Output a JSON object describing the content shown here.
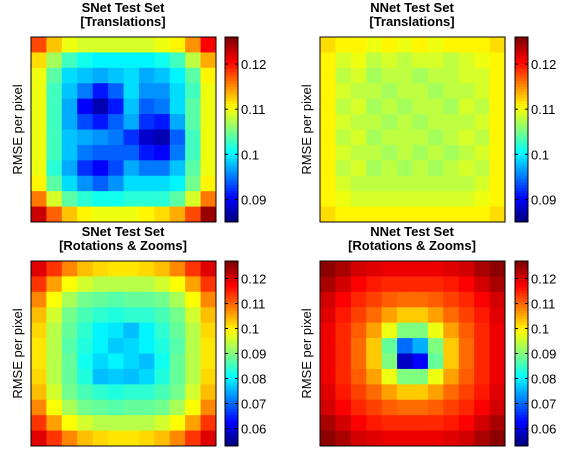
{
  "chart_data": [
    {
      "type": "heatmap",
      "title": [
        "SNet Test Set",
        "[Translations]"
      ],
      "xlabel": "",
      "ylabel": "RMSE per pixel",
      "colorbar": {
        "range": [
          0.085,
          0.126
        ],
        "ticks": [
          0.09,
          0.1,
          0.11,
          0.12
        ],
        "tick_labels": [
          "0.09",
          "0.1",
          "0.11",
          "0.12"
        ]
      },
      "grid": "12x12",
      "values": [
        [
          0.118,
          0.113,
          0.11,
          0.109,
          0.109,
          0.109,
          0.109,
          0.109,
          0.11,
          0.111,
          0.115,
          0.121
        ],
        [
          0.112,
          0.107,
          0.103,
          0.101,
          0.1,
          0.1,
          0.1,
          0.1,
          0.101,
          0.103,
          0.108,
          0.114
        ],
        [
          0.11,
          0.104,
          0.099,
          0.098,
          0.097,
          0.098,
          0.099,
          0.097,
          0.098,
          0.1,
          0.104,
          0.111
        ],
        [
          0.11,
          0.103,
          0.098,
          0.095,
          0.091,
          0.094,
          0.099,
          0.096,
          0.096,
          0.099,
          0.103,
          0.11
        ],
        [
          0.11,
          0.103,
          0.097,
          0.09,
          0.087,
          0.091,
          0.098,
          0.094,
          0.095,
          0.099,
          0.104,
          0.11
        ],
        [
          0.11,
          0.103,
          0.097,
          0.093,
          0.091,
          0.094,
          0.097,
          0.092,
          0.091,
          0.097,
          0.104,
          0.11
        ],
        [
          0.11,
          0.103,
          0.098,
          0.097,
          0.096,
          0.095,
          0.092,
          0.088,
          0.087,
          0.094,
          0.103,
          0.11
        ],
        [
          0.11,
          0.103,
          0.098,
          0.095,
          0.094,
          0.094,
          0.094,
          0.091,
          0.09,
          0.095,
          0.103,
          0.11
        ],
        [
          0.11,
          0.102,
          0.097,
          0.092,
          0.09,
          0.093,
          0.097,
          0.095,
          0.095,
          0.098,
          0.104,
          0.11
        ],
        [
          0.111,
          0.104,
          0.099,
          0.096,
          0.094,
          0.096,
          0.099,
          0.099,
          0.099,
          0.1,
          0.105,
          0.111
        ],
        [
          0.116,
          0.109,
          0.104,
          0.102,
          0.101,
          0.101,
          0.102,
          0.102,
          0.102,
          0.104,
          0.109,
          0.116
        ],
        [
          0.123,
          0.117,
          0.113,
          0.111,
          0.11,
          0.11,
          0.11,
          0.111,
          0.112,
          0.114,
          0.118,
          0.125
        ]
      ]
    },
    {
      "type": "heatmap",
      "title": [
        "NNet Test Set",
        "[Translations]"
      ],
      "xlabel": "",
      "ylabel": "RMSE per pixel",
      "colorbar": {
        "range": [
          0.085,
          0.126
        ],
        "ticks": [
          0.09,
          0.1,
          0.11,
          0.12
        ],
        "tick_labels": [
          "0.09",
          "0.1",
          "0.11",
          "0.12"
        ]
      },
      "grid": "12x12",
      "values": [
        [
          0.112,
          0.111,
          0.111,
          0.11,
          0.111,
          0.11,
          0.111,
          0.11,
          0.111,
          0.111,
          0.111,
          0.112
        ],
        [
          0.111,
          0.109,
          0.11,
          0.108,
          0.109,
          0.108,
          0.109,
          0.109,
          0.108,
          0.109,
          0.11,
          0.111
        ],
        [
          0.111,
          0.108,
          0.109,
          0.107,
          0.108,
          0.108,
          0.107,
          0.108,
          0.108,
          0.109,
          0.109,
          0.111
        ],
        [
          0.111,
          0.109,
          0.108,
          0.108,
          0.107,
          0.108,
          0.108,
          0.107,
          0.108,
          0.108,
          0.109,
          0.111
        ],
        [
          0.111,
          0.108,
          0.109,
          0.107,
          0.108,
          0.107,
          0.108,
          0.108,
          0.107,
          0.109,
          0.108,
          0.111
        ],
        [
          0.111,
          0.109,
          0.108,
          0.108,
          0.107,
          0.108,
          0.107,
          0.108,
          0.108,
          0.108,
          0.109,
          0.111
        ],
        [
          0.111,
          0.108,
          0.109,
          0.107,
          0.108,
          0.108,
          0.108,
          0.107,
          0.108,
          0.109,
          0.108,
          0.111
        ],
        [
          0.111,
          0.109,
          0.108,
          0.108,
          0.107,
          0.108,
          0.107,
          0.108,
          0.107,
          0.108,
          0.109,
          0.111
        ],
        [
          0.111,
          0.108,
          0.109,
          0.107,
          0.108,
          0.107,
          0.108,
          0.107,
          0.108,
          0.109,
          0.108,
          0.111
        ],
        [
          0.111,
          0.109,
          0.108,
          0.108,
          0.108,
          0.108,
          0.108,
          0.108,
          0.108,
          0.108,
          0.109,
          0.111
        ],
        [
          0.111,
          0.11,
          0.109,
          0.109,
          0.109,
          0.109,
          0.109,
          0.109,
          0.109,
          0.109,
          0.11,
          0.111
        ],
        [
          0.112,
          0.111,
          0.111,
          0.111,
          0.111,
          0.111,
          0.111,
          0.111,
          0.111,
          0.111,
          0.111,
          0.112
        ]
      ]
    },
    {
      "type": "heatmap",
      "title": [
        "SNet Test Set",
        "[Rotations & Zooms]"
      ],
      "xlabel": "",
      "ylabel": "RMSE per pixel",
      "colorbar": {
        "range": [
          0.053,
          0.127
        ],
        "ticks": [
          0.06,
          0.07,
          0.08,
          0.09,
          0.1,
          0.11,
          0.12
        ],
        "tick_labels": [
          "0.06",
          "0.07",
          "0.08",
          "0.09",
          "0.1",
          "0.11",
          "0.12"
        ]
      },
      "grid": "12x12",
      "values": [
        [
          0.12,
          0.114,
          0.108,
          0.104,
          0.102,
          0.101,
          0.101,
          0.102,
          0.104,
          0.108,
          0.114,
          0.12
        ],
        [
          0.114,
          0.106,
          0.099,
          0.096,
          0.094,
          0.094,
          0.094,
          0.094,
          0.096,
          0.099,
          0.106,
          0.114
        ],
        [
          0.108,
          0.099,
          0.093,
          0.089,
          0.088,
          0.087,
          0.088,
          0.088,
          0.089,
          0.093,
          0.099,
          0.108
        ],
        [
          0.104,
          0.096,
          0.089,
          0.086,
          0.084,
          0.083,
          0.084,
          0.084,
          0.086,
          0.089,
          0.096,
          0.104
        ],
        [
          0.102,
          0.094,
          0.088,
          0.084,
          0.08,
          0.079,
          0.076,
          0.08,
          0.084,
          0.088,
          0.094,
          0.102
        ],
        [
          0.101,
          0.094,
          0.087,
          0.083,
          0.08,
          0.077,
          0.078,
          0.08,
          0.083,
          0.087,
          0.094,
          0.101
        ],
        [
          0.101,
          0.094,
          0.088,
          0.082,
          0.078,
          0.08,
          0.078,
          0.076,
          0.082,
          0.088,
          0.094,
          0.101
        ],
        [
          0.102,
          0.094,
          0.088,
          0.083,
          0.076,
          0.077,
          0.076,
          0.078,
          0.083,
          0.088,
          0.094,
          0.102
        ],
        [
          0.104,
          0.096,
          0.089,
          0.086,
          0.084,
          0.083,
          0.084,
          0.084,
          0.086,
          0.089,
          0.096,
          0.104
        ],
        [
          0.108,
          0.099,
          0.093,
          0.089,
          0.088,
          0.087,
          0.088,
          0.088,
          0.089,
          0.093,
          0.099,
          0.108
        ],
        [
          0.114,
          0.106,
          0.099,
          0.096,
          0.094,
          0.094,
          0.094,
          0.094,
          0.096,
          0.099,
          0.106,
          0.114
        ],
        [
          0.12,
          0.114,
          0.108,
          0.104,
          0.102,
          0.101,
          0.101,
          0.102,
          0.104,
          0.108,
          0.114,
          0.12
        ]
      ]
    },
    {
      "type": "heatmap",
      "title": [
        "NNet Test Set",
        "[Rotations & Zooms]"
      ],
      "xlabel": "",
      "ylabel": "RMSE per pixel",
      "colorbar": {
        "range": [
          0.053,
          0.127
        ],
        "ticks": [
          0.06,
          0.07,
          0.08,
          0.09,
          0.1,
          0.11,
          0.12
        ],
        "tick_labels": [
          "0.06",
          "0.07",
          "0.08",
          "0.09",
          "0.1",
          "0.11",
          "0.12"
        ]
      },
      "grid": "12x12",
      "values": [
        [
          0.126,
          0.124,
          0.121,
          0.12,
          0.119,
          0.119,
          0.119,
          0.119,
          0.12,
          0.121,
          0.124,
          0.126
        ],
        [
          0.124,
          0.121,
          0.118,
          0.116,
          0.115,
          0.115,
          0.115,
          0.115,
          0.116,
          0.118,
          0.121,
          0.124
        ],
        [
          0.121,
          0.118,
          0.115,
          0.113,
          0.111,
          0.11,
          0.11,
          0.111,
          0.113,
          0.115,
          0.118,
          0.121
        ],
        [
          0.12,
          0.116,
          0.113,
          0.11,
          0.106,
          0.103,
          0.103,
          0.106,
          0.11,
          0.113,
          0.116,
          0.12
        ],
        [
          0.119,
          0.115,
          0.111,
          0.106,
          0.098,
          0.09,
          0.09,
          0.098,
          0.106,
          0.111,
          0.115,
          0.119
        ],
        [
          0.119,
          0.115,
          0.11,
          0.103,
          0.088,
          0.07,
          0.075,
          0.09,
          0.103,
          0.11,
          0.115,
          0.119
        ],
        [
          0.119,
          0.115,
          0.11,
          0.103,
          0.09,
          0.058,
          0.062,
          0.088,
          0.103,
          0.11,
          0.115,
          0.119
        ],
        [
          0.119,
          0.115,
          0.111,
          0.106,
          0.098,
          0.09,
          0.09,
          0.098,
          0.106,
          0.111,
          0.115,
          0.119
        ],
        [
          0.12,
          0.116,
          0.113,
          0.11,
          0.106,
          0.103,
          0.103,
          0.106,
          0.11,
          0.113,
          0.116,
          0.12
        ],
        [
          0.121,
          0.118,
          0.115,
          0.113,
          0.111,
          0.11,
          0.11,
          0.111,
          0.113,
          0.115,
          0.118,
          0.121
        ],
        [
          0.124,
          0.121,
          0.118,
          0.116,
          0.115,
          0.115,
          0.115,
          0.115,
          0.116,
          0.118,
          0.121,
          0.124
        ],
        [
          0.126,
          0.124,
          0.121,
          0.12,
          0.119,
          0.119,
          0.119,
          0.119,
          0.12,
          0.121,
          0.124,
          0.126
        ]
      ]
    }
  ]
}
